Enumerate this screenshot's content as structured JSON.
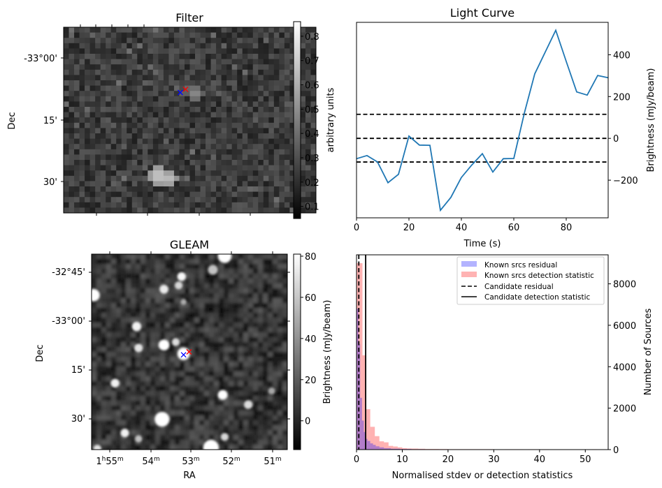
{
  "chart_data": [
    {
      "id": "filter",
      "type": "heatmap",
      "title": "Filter",
      "xlabel": "",
      "ylabel": "Dec",
      "ytick_labels": [
        "-33°00'",
        "15'",
        "30'"
      ],
      "colorbar": {
        "label": "arbitrary units",
        "ticks": [
          0.1,
          0.2,
          0.3,
          0.4,
          0.5,
          0.6,
          0.7,
          0.8
        ],
        "tick_labels": [
          "0.1",
          "0.2",
          "0.3",
          "0.4",
          "0.5",
          "0.6",
          "0.7",
          "0.8"
        ],
        "range": [
          0.05,
          0.86
        ],
        "colormap": "gray"
      },
      "grid": {
        "cols": 48,
        "rows": 35
      },
      "bright_spots": [
        {
          "col": 24.5,
          "row": 12,
          "value": 0.6
        },
        {
          "col": 17.5,
          "row": 27.5,
          "value": 0.85
        },
        {
          "col": 19.5,
          "row": 28,
          "value": 0.8
        }
      ],
      "markers": [
        {
          "name": "blue-cross",
          "color": "#0000ff",
          "col": 22.2,
          "row": 12.3
        },
        {
          "name": "red-cross",
          "color": "#ff0000",
          "col": 23.2,
          "row": 11.7
        }
      ]
    },
    {
      "id": "light_curve",
      "type": "line",
      "title": "Light Curve",
      "xlabel": "Time (s)",
      "ylabel": "Brightness (mJy/beam)",
      "xlim": [
        0,
        96
      ],
      "ylim": [
        -380,
        555
      ],
      "xticks": [
        0,
        20,
        40,
        60,
        80
      ],
      "yticks": [
        -200,
        0,
        200,
        400
      ],
      "ytick_labels": [
        "−200",
        "0",
        "200",
        "400"
      ],
      "y_axis_side": "right",
      "series": [
        {
          "name": "light-curve",
          "color": "#1f77b4",
          "x": [
            0,
            4,
            8,
            12,
            16,
            20,
            24,
            28,
            32,
            36,
            40,
            44,
            48,
            52,
            56,
            60,
            64,
            68,
            72,
            76,
            80,
            84,
            88,
            92,
            96
          ],
          "y": [
            -97,
            -82,
            -113,
            -212,
            -172,
            11,
            -32,
            -33,
            -344,
            -282,
            -187,
            -127,
            -73,
            -161,
            -97,
            -96,
            120,
            309,
            413,
            517,
            368,
            222,
            207,
            301,
            290
          ]
        }
      ],
      "hlines": [
        {
          "y": 115,
          "style": "dashed",
          "color": "#000000"
        },
        {
          "y": 0,
          "style": "dashed",
          "color": "#000000"
        },
        {
          "y": -113,
          "style": "dashed",
          "color": "#000000"
        }
      ]
    },
    {
      "id": "gleam",
      "type": "heatmap",
      "title": "GLEAM",
      "xlabel": "RA",
      "ylabel": "Dec",
      "xtick_labels": [
        {
          "h": "1",
          "hsup": "h",
          "m": "55",
          "msup": "m"
        },
        {
          "h": "",
          "hsup": "",
          "m": "54",
          "msup": "m"
        },
        {
          "h": "",
          "hsup": "",
          "m": "53",
          "msup": "m"
        },
        {
          "h": "",
          "hsup": "",
          "m": "52",
          "msup": "m"
        },
        {
          "h": "",
          "hsup": "",
          "m": "51",
          "msup": "m"
        }
      ],
      "ytick_labels": [
        "-32°45'",
        "-33°00'",
        "15'",
        "30'"
      ],
      "colorbar": {
        "label": "Brightness (mJy/beam)",
        "ticks": [
          0,
          20,
          40,
          60,
          80
        ],
        "tick_labels": [
          "0",
          "20",
          "40",
          "60",
          "80"
        ],
        "range": [
          -14,
          81
        ],
        "colormap": "gray"
      },
      "sources": [
        {
          "u": 0.68,
          "v": 0.01,
          "r": 0.035,
          "b": 1.0
        },
        {
          "u": 0.62,
          "v": 0.08,
          "r": 0.025,
          "b": 0.55
        },
        {
          "u": 0.46,
          "v": 0.115,
          "r": 0.022,
          "b": 0.95
        },
        {
          "u": 0.445,
          "v": 0.16,
          "r": 0.02,
          "b": 0.7
        },
        {
          "u": 0.37,
          "v": 0.18,
          "r": 0.023,
          "b": 0.85
        },
        {
          "u": 0.01,
          "v": 0.21,
          "r": 0.032,
          "b": 1.0
        },
        {
          "u": 0.47,
          "v": 0.245,
          "r": 0.015,
          "b": 0.4
        },
        {
          "u": 0.23,
          "v": 0.37,
          "r": 0.024,
          "b": 0.9
        },
        {
          "u": 0.37,
          "v": 0.465,
          "r": 0.028,
          "b": 1.0
        },
        {
          "u": 0.43,
          "v": 0.45,
          "r": 0.02,
          "b": 0.75
        },
        {
          "u": 0.24,
          "v": 0.48,
          "r": 0.022,
          "b": 0.8
        },
        {
          "u": 0.47,
          "v": 0.51,
          "r": 0.032,
          "b": 1.0
        },
        {
          "u": 0.12,
          "v": 0.66,
          "r": 0.022,
          "b": 0.9
        },
        {
          "u": 0.67,
          "v": 0.72,
          "r": 0.025,
          "b": 1.0
        },
        {
          "u": 0.8,
          "v": 0.77,
          "r": 0.022,
          "b": 0.75
        },
        {
          "u": 0.36,
          "v": 0.845,
          "r": 0.038,
          "b": 1.0
        },
        {
          "u": 0.17,
          "v": 0.915,
          "r": 0.022,
          "b": 0.9
        },
        {
          "u": 0.24,
          "v": 0.945,
          "r": 0.018,
          "b": 0.55
        },
        {
          "u": 0.68,
          "v": 0.935,
          "r": 0.02,
          "b": 0.7
        },
        {
          "u": 0.61,
          "v": 0.99,
          "r": 0.04,
          "b": 1.0
        },
        {
          "u": 0.03,
          "v": 0.995,
          "r": 0.02,
          "b": 0.8
        },
        {
          "u": 0.92,
          "v": 0.7,
          "r": 0.018,
          "b": 0.35
        }
      ],
      "markers": [
        {
          "name": "blue-cross",
          "color": "#0000ff",
          "u": 0.47,
          "v": 0.515
        },
        {
          "name": "red-cross",
          "color": "#ff0000",
          "u": 0.498,
          "v": 0.5
        }
      ]
    },
    {
      "id": "histogram",
      "type": "bar",
      "title": "",
      "xlabel": "Normalised stdev or detection statistics",
      "ylabel": "Number of Sources",
      "xlim": [
        0,
        55
      ],
      "ylim": [
        0,
        9400
      ],
      "xticks": [
        0,
        10,
        20,
        30,
        40,
        50
      ],
      "yticks": [
        0,
        2000,
        4000,
        6000,
        8000
      ],
      "y_axis_side": "right",
      "legend_position": "top-right",
      "series": [
        {
          "name": "Known srcs residual",
          "color": "#0000ff",
          "alpha": 0.3,
          "bin_edges": [
            0,
            0.4,
            0.8,
            1.2,
            1.6,
            2.0,
            2.4,
            3.0,
            3.6,
            4.2,
            5.0,
            6.0,
            7.5,
            9.5,
            12,
            15,
            20,
            27
          ],
          "counts": [
            6800,
            5100,
            2500,
            1400,
            850,
            520,
            420,
            300,
            230,
            160,
            110,
            70,
            45,
            30,
            20,
            15,
            8
          ]
        },
        {
          "name": "Known srcs detection statistic",
          "color": "#ff0000",
          "alpha": 0.3,
          "bin_edges": [
            0,
            0.65,
            1.3,
            2.0,
            3.0,
            4.0,
            5.0,
            6.0,
            7.0,
            8.0,
            9.0,
            10.0,
            11.0,
            12.0,
            13.5,
            15.0,
            18.0,
            20.0,
            22.0,
            25.0,
            30.0,
            31.5,
            32.5,
            36.5,
            37.5,
            39.5,
            40.5,
            42.0,
            43.0,
            51.5,
            52.5
          ],
          "counts": [
            9000,
            9000,
            4550,
            1950,
            1100,
            650,
            400,
            350,
            180,
            150,
            110,
            70,
            55,
            50,
            40,
            30,
            25,
            20,
            20,
            20,
            15,
            0,
            18,
            0,
            18,
            0,
            18,
            0,
            0,
            18
          ]
        }
      ],
      "vlines": [
        {
          "name": "Candidate residual",
          "x": 0.5,
          "style": "dashed",
          "color": "#000000"
        },
        {
          "name": "Candidate detection statistic",
          "x": 2.0,
          "style": "solid",
          "color": "#000000"
        }
      ],
      "legend": [
        {
          "label": "Known srcs residual",
          "kind": "patch",
          "color": "#b3b3ff"
        },
        {
          "label": "Known srcs detection statistic",
          "kind": "patch",
          "color": "#ffb3b3"
        },
        {
          "label": "Candidate residual",
          "kind": "dashed",
          "color": "#000000"
        },
        {
          "label": "Candidate detection statistic",
          "kind": "solid",
          "color": "#000000"
        }
      ]
    }
  ]
}
